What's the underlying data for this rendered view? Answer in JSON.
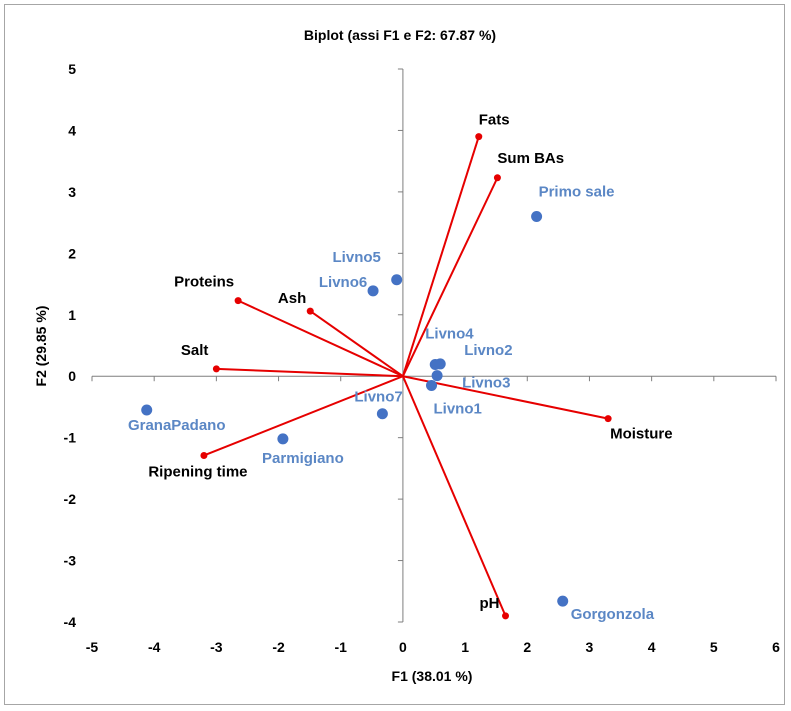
{
  "chart_data": {
    "type": "scatter",
    "title": "Biplot (assi F1 e F2: 67.87 %)",
    "xlabel": "F1 (38.01 %)",
    "ylabel": "F2 (29.85 %)",
    "xlim": [
      -5,
      6
    ],
    "ylim": [
      -4,
      5
    ],
    "xticks": [
      "-5",
      "-4",
      "-3",
      "-2",
      "-1",
      "0",
      "1",
      "2",
      "3",
      "4",
      "5",
      "6"
    ],
    "yticks": [
      "-4",
      "-3",
      "-2",
      "-1",
      "0",
      "1",
      "2",
      "3",
      "4",
      "5"
    ],
    "grid": false,
    "colors": {
      "variables": "#e60000",
      "observations": "#4472c4",
      "observation_labels": "#5b87c5",
      "axes": "#7f7f7f"
    },
    "variables": [
      {
        "name": "Fats",
        "x": 1.22,
        "y": 3.9,
        "label_anchor": "start"
      },
      {
        "name": "Sum BAs",
        "x": 1.52,
        "y": 3.23,
        "label_anchor": "start"
      },
      {
        "name": "Proteins",
        "x": -2.65,
        "y": 1.23,
        "label_anchor": "end"
      },
      {
        "name": "Ash",
        "x": -1.49,
        "y": 1.06,
        "label_anchor": "end"
      },
      {
        "name": "Salt",
        "x": -3.0,
        "y": 0.12,
        "label_anchor": "end"
      },
      {
        "name": "Moisture",
        "x": 3.3,
        "y": -0.69,
        "label_anchor": "start"
      },
      {
        "name": "Ripening time",
        "x": -3.2,
        "y": -1.29,
        "label_anchor": "middle"
      },
      {
        "name": "pH",
        "x": 1.65,
        "y": -3.9,
        "label_anchor": "end"
      }
    ],
    "observations": [
      {
        "name": "Primo sale",
        "x": 2.15,
        "y": 2.6
      },
      {
        "name": "Livno5",
        "x": -0.1,
        "y": 1.57
      },
      {
        "name": "Livno6",
        "x": -0.48,
        "y": 1.39
      },
      {
        "name": "Livno4",
        "x": 0.52,
        "y": 0.19
      },
      {
        "name": "Livno2",
        "x": 0.6,
        "y": 0.2
      },
      {
        "name": "Livno3",
        "x": 0.55,
        "y": 0.01
      },
      {
        "name": "Livno1",
        "x": 0.46,
        "y": -0.15
      },
      {
        "name": "Livno7",
        "x": -0.33,
        "y": -0.61
      },
      {
        "name": "GranaPadano",
        "x": -4.12,
        "y": -0.55
      },
      {
        "name": "Parmigiano",
        "x": -1.93,
        "y": -1.02
      },
      {
        "name": "Gorgonzola",
        "x": 2.57,
        "y": -3.66
      }
    ]
  }
}
